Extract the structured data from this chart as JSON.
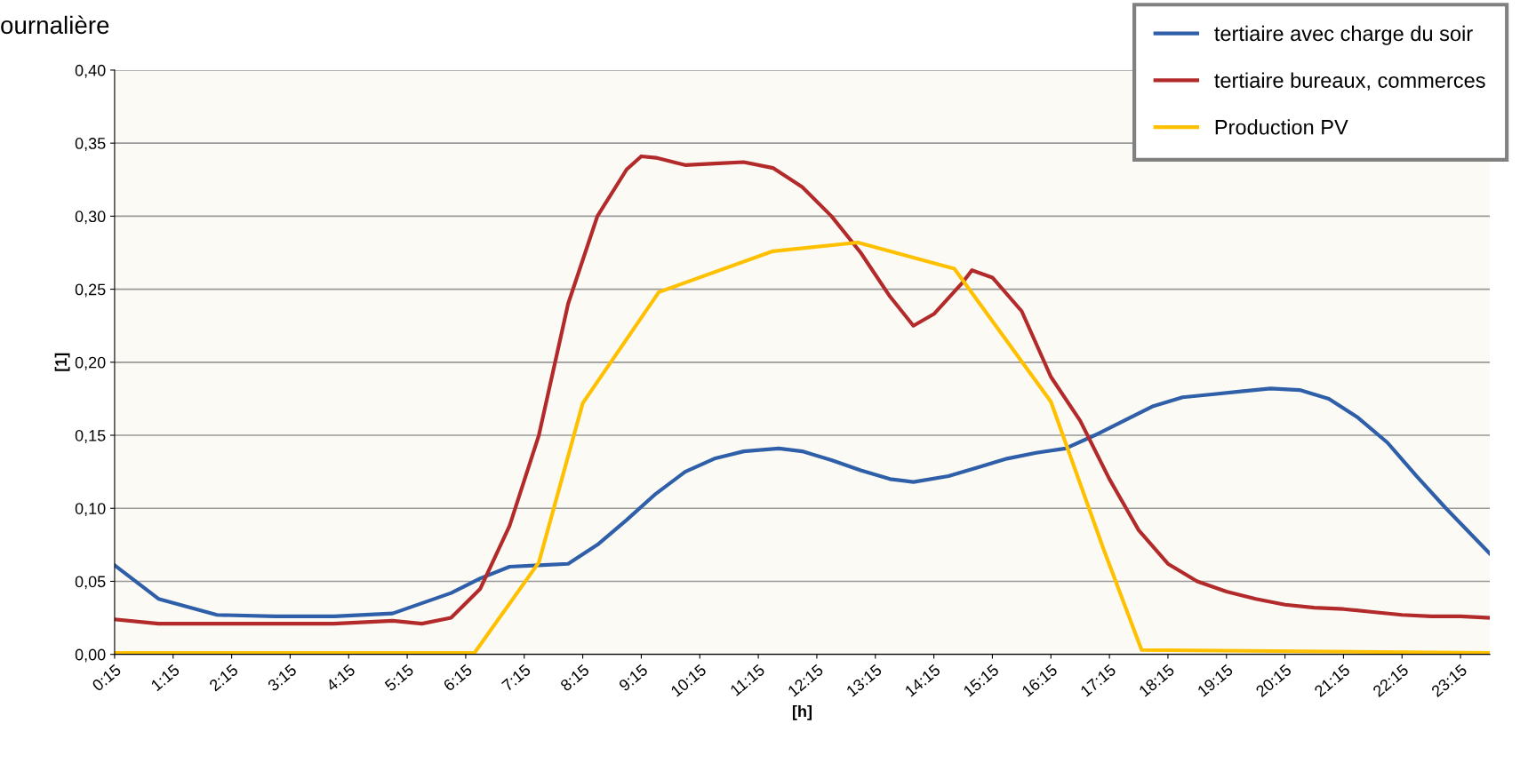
{
  "chart_data": {
    "type": "line",
    "title": "ournalière",
    "xlabel": "[h]",
    "ylabel": "[1]",
    "xlim": [
      0.25,
      23.75
    ],
    "xticks": [
      {
        "value": 0.25,
        "label": "0:15"
      },
      {
        "value": 1.25,
        "label": "1:15"
      },
      {
        "value": 2.25,
        "label": "2:15"
      },
      {
        "value": 3.25,
        "label": "3:15"
      },
      {
        "value": 4.25,
        "label": "4:15"
      },
      {
        "value": 5.25,
        "label": "5:15"
      },
      {
        "value": 6.25,
        "label": "6:15"
      },
      {
        "value": 7.25,
        "label": "7:15"
      },
      {
        "value": 8.25,
        "label": "8:15"
      },
      {
        "value": 9.25,
        "label": "9:15"
      },
      {
        "value": 10.25,
        "label": "10:15"
      },
      {
        "value": 11.25,
        "label": "11:15"
      },
      {
        "value": 12.25,
        "label": "12:15"
      },
      {
        "value": 13.25,
        "label": "13:15"
      },
      {
        "value": 14.25,
        "label": "14:15"
      },
      {
        "value": 15.25,
        "label": "15:15"
      },
      {
        "value": 16.25,
        "label": "16:15"
      },
      {
        "value": 17.25,
        "label": "17:15"
      },
      {
        "value": 18.25,
        "label": "18:15"
      },
      {
        "value": 19.25,
        "label": "19:15"
      },
      {
        "value": 20.25,
        "label": "20:15"
      },
      {
        "value": 21.25,
        "label": "21:15"
      },
      {
        "value": 22.25,
        "label": "22:15"
      },
      {
        "value": 23.25,
        "label": "23:15"
      }
    ],
    "ylim": [
      0,
      0.4
    ],
    "yticks": [
      {
        "value": 0,
        "label": "0,00"
      },
      {
        "value": 0.05,
        "label": "0,05"
      },
      {
        "value": 0.1,
        "label": "0,10"
      },
      {
        "value": 0.15,
        "label": "0,15"
      },
      {
        "value": 0.2,
        "label": "0,20"
      },
      {
        "value": 0.25,
        "label": "0,25"
      },
      {
        "value": 0.3,
        "label": "0,30"
      },
      {
        "value": 0.35,
        "label": "0,35"
      },
      {
        "value": 0.4,
        "label": "0,40"
      }
    ],
    "grid": "y",
    "legend": "top right",
    "marker": "none",
    "line_style": "solid",
    "series": [
      {
        "name": "tertiaire avec charge du soir",
        "color": "#2e5fa8",
        "x": [
          0.25,
          1,
          2,
          3,
          4,
          5,
          6,
          6.5,
          7,
          7.5,
          8,
          8.5,
          9,
          9.5,
          10,
          10.5,
          11,
          11.6,
          12,
          12.5,
          13,
          13.5,
          13.9,
          14.5,
          15,
          15.5,
          16,
          16.5,
          17,
          17.5,
          18,
          18.5,
          19,
          19.5,
          20,
          20.5,
          21,
          21.5,
          22,
          22.5,
          23,
          23.75
        ],
        "values": [
          0.061,
          0.038,
          0.027,
          0.026,
          0.026,
          0.028,
          0.042,
          0.052,
          0.06,
          0.061,
          0.062,
          0.075,
          0.092,
          0.11,
          0.125,
          0.134,
          0.139,
          0.141,
          0.139,
          0.133,
          0.126,
          0.12,
          0.118,
          0.122,
          0.128,
          0.134,
          0.138,
          0.141,
          0.15,
          0.16,
          0.17,
          0.176,
          0.178,
          0.18,
          0.182,
          0.181,
          0.175,
          0.162,
          0.145,
          0.122,
          0.1,
          0.069
        ]
      },
      {
        "name": "tertiaire bureaux, commerces",
        "color": "#b22a2a",
        "x": [
          0.25,
          1,
          2,
          3,
          4,
          5,
          5.5,
          6,
          6.5,
          7,
          7.5,
          8,
          8.5,
          9,
          9.25,
          9.5,
          10,
          10.5,
          11,
          11.5,
          12,
          12.5,
          13,
          13.5,
          13.9,
          14.25,
          14.75,
          14.9,
          15.25,
          15.75,
          16.25,
          16.75,
          17.25,
          17.75,
          18.25,
          18.75,
          19.25,
          19.75,
          20.25,
          20.75,
          21.25,
          21.75,
          22.25,
          22.75,
          23.25,
          23.75
        ],
        "values": [
          0.024,
          0.021,
          0.021,
          0.021,
          0.021,
          0.023,
          0.021,
          0.025,
          0.045,
          0.088,
          0.15,
          0.24,
          0.3,
          0.332,
          0.341,
          0.34,
          0.335,
          0.336,
          0.337,
          0.333,
          0.32,
          0.3,
          0.275,
          0.245,
          0.225,
          0.233,
          0.255,
          0.263,
          0.258,
          0.235,
          0.19,
          0.16,
          0.12,
          0.085,
          0.062,
          0.05,
          0.043,
          0.038,
          0.034,
          0.032,
          0.031,
          0.029,
          0.027,
          0.026,
          0.026,
          0.025
        ]
      },
      {
        "name": "Production PV",
        "color": "#ffc000",
        "x": [
          0.25,
          6.4,
          7.5,
          8.25,
          9.55,
          11.5,
          12.95,
          14.6,
          16.25,
          17.15,
          17.8,
          23.75
        ],
        "values": [
          0.001,
          0.001,
          0.063,
          0.172,
          0.248,
          0.276,
          0.282,
          0.264,
          0.173,
          0.072,
          0.003,
          0.001
        ]
      }
    ]
  }
}
